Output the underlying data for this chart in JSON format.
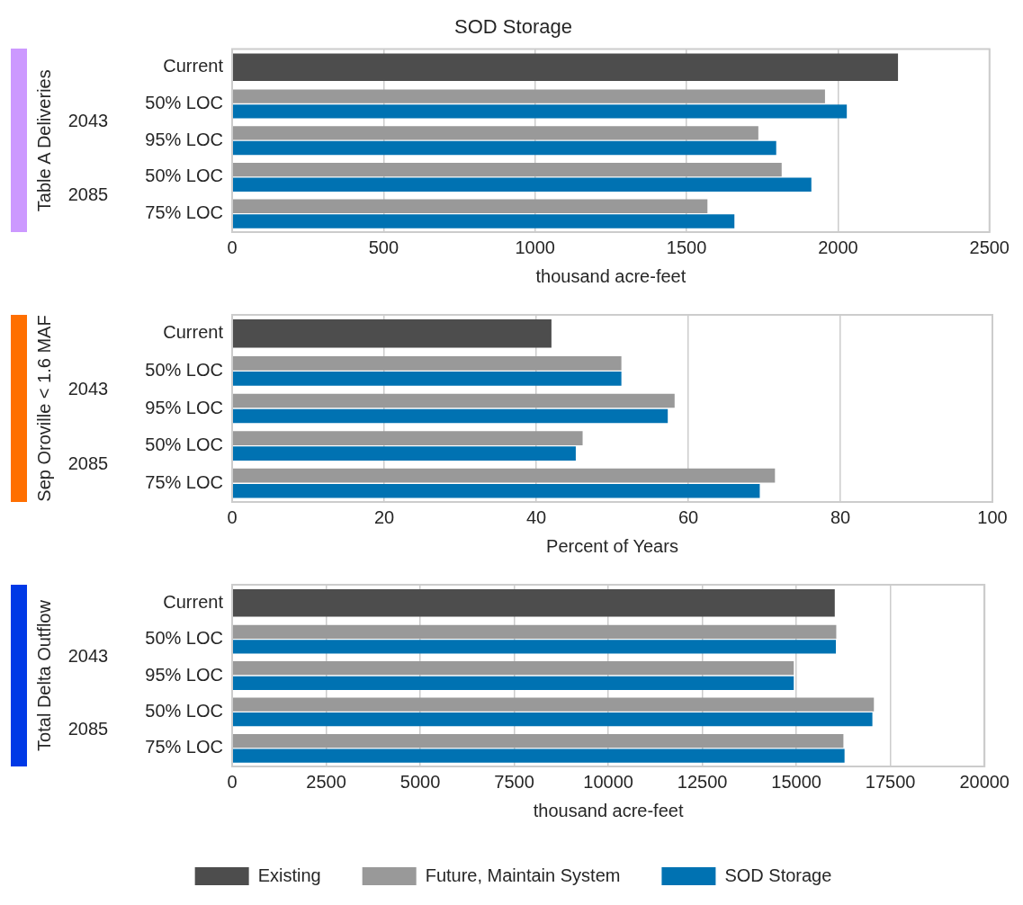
{
  "chart_data": [
    {
      "type": "bar",
      "orientation": "horizontal",
      "title": "SOD Storage",
      "xlabel": "thousand acre-feet",
      "ylabel": "Table A Deliveries",
      "categories": [
        "Current",
        "50% LOC",
        "95% LOC",
        "50% LOC",
        "75% LOC"
      ],
      "annotations": [
        "2043",
        "2085"
      ],
      "xlim": [
        0,
        2500
      ],
      "xticks": [
        0,
        500,
        1000,
        1500,
        2000,
        2500
      ],
      "grid": "x",
      "legend": false,
      "series": [
        {
          "color": "#4d4d4d",
          "values": [
            2198,
            null,
            null,
            null,
            null
          ]
        },
        {
          "color": "#999999",
          "values": [
            null,
            1957,
            1737,
            1814,
            1569
          ]
        },
        {
          "color": "#0072b2",
          "values": [
            null,
            2029,
            1796,
            1912,
            1658
          ]
        }
      ]
    },
    {
      "type": "bar",
      "orientation": "horizontal",
      "xlabel": "Percent of Years",
      "ylabel": "Sep Oroville < 1.6 MAF",
      "categories": [
        "Current",
        "50% LOC",
        "95% LOC",
        "50% LOC",
        "75% LOC"
      ],
      "annotations": [
        "2043",
        "2085"
      ],
      "xlim": [
        0,
        100
      ],
      "xticks": [
        0,
        20,
        40,
        60,
        80,
        100
      ],
      "grid": "x",
      "legend": false,
      "series": [
        {
          "color": "#4d4d4d",
          "values": [
            42,
            null,
            null,
            null,
            null
          ]
        },
        {
          "color": "#999999",
          "values": [
            null,
            51.2,
            58.2,
            46.1,
            71.4
          ]
        },
        {
          "color": "#0072b2",
          "values": [
            null,
            51.2,
            57.3,
            45.2,
            69.4
          ]
        }
      ]
    },
    {
      "type": "bar",
      "orientation": "horizontal",
      "xlabel": "thousand acre-feet",
      "ylabel": "Total Delta Outflow",
      "categories": [
        "Current",
        "50% LOC",
        "95% LOC",
        "50% LOC",
        "75% LOC"
      ],
      "annotations": [
        "2043",
        "2085"
      ],
      "xlim": [
        0,
        20000
      ],
      "xticks": [
        0,
        2500,
        5000,
        7500,
        10000,
        12500,
        15000,
        17500,
        20000
      ],
      "grid": "x",
      "legend": "bottom",
      "series": [
        {
          "name": "Existing",
          "color": "#4d4d4d",
          "values": [
            16020,
            null,
            null,
            null,
            null
          ]
        },
        {
          "name": "Future, Maintain System",
          "color": "#999999",
          "values": [
            null,
            16060,
            14930,
            17060,
            16250
          ]
        },
        {
          "name": "SOD Storage",
          "color": "#0072b2",
          "values": [
            null,
            16050,
            14930,
            17020,
            16280
          ]
        }
      ]
    }
  ]
}
